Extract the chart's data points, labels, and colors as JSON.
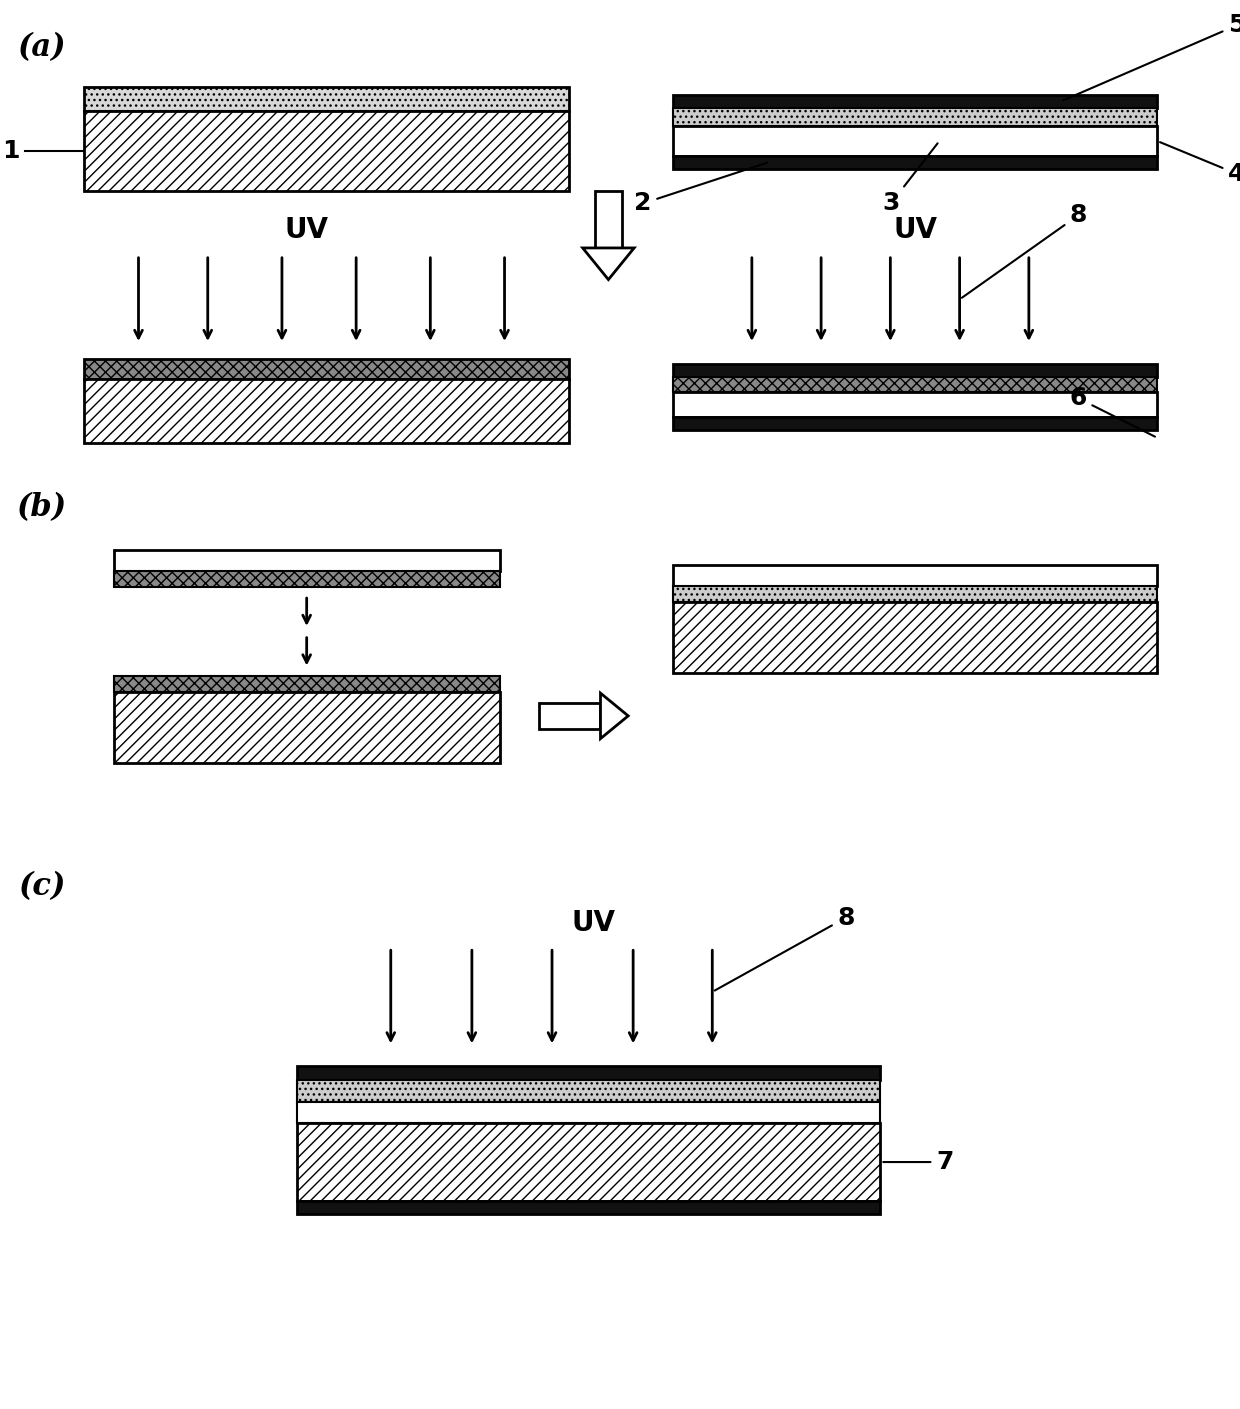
{
  "bg_color": "#ffffff",
  "section_a_label": "(a)",
  "section_b_label": "(b)",
  "section_c_label": "(c)",
  "label_fontsize": 22,
  "uv_fontsize": 20,
  "number_fontsize": 18,
  "arrow_lw": 2.0
}
